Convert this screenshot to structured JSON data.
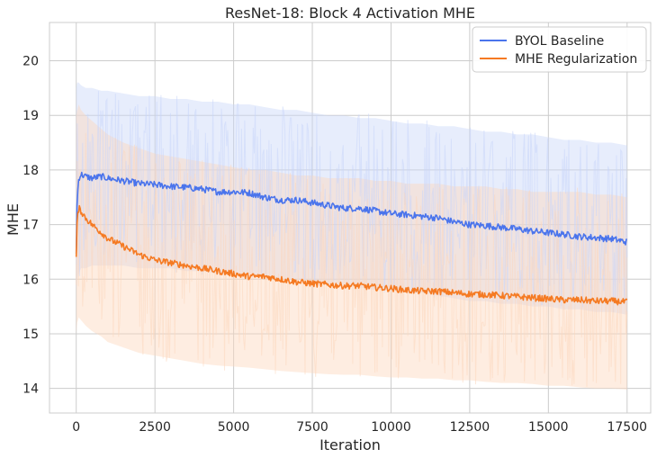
{
  "chart_data": {
    "type": "line",
    "title": "ResNet-18: Block 4 Activation MHE",
    "xlabel": "Iteration",
    "ylabel": "MHE",
    "xlim": [
      -850,
      18250
    ],
    "ylim": [
      13.55,
      20.7
    ],
    "xticks": [
      0,
      2500,
      5000,
      7500,
      10000,
      12500,
      15000,
      17500
    ],
    "xtick_labels": [
      "0",
      "2500",
      "5000",
      "7500",
      "10000",
      "12500",
      "15000",
      "17500"
    ],
    "yticks": [
      14,
      15,
      16,
      17,
      18,
      19,
      20
    ],
    "ytick_labels": [
      "14",
      "15",
      "16",
      "17",
      "18",
      "19",
      "20"
    ],
    "grid": true,
    "legend_position": "top-right",
    "series": [
      {
        "name": "BYOL Baseline",
        "color": "#4a74ec",
        "band_color": "#c9d6f9",
        "x": [
          0,
          30,
          80,
          150,
          300,
          500,
          800,
          1000,
          1500,
          2000,
          2500,
          3000,
          3500,
          4000,
          4500,
          5000,
          5500,
          6000,
          6500,
          7000,
          7500,
          8000,
          8500,
          9000,
          9500,
          10000,
          10500,
          11000,
          11500,
          12000,
          12500,
          13000,
          13500,
          14000,
          14500,
          15000,
          15500,
          16000,
          16500,
          17000,
          17500
        ],
        "values": [
          16.5,
          17.5,
          17.85,
          17.92,
          17.88,
          17.85,
          17.88,
          17.85,
          17.8,
          17.75,
          17.73,
          17.7,
          17.68,
          17.65,
          17.6,
          17.6,
          17.58,
          17.5,
          17.45,
          17.45,
          17.4,
          17.35,
          17.3,
          17.3,
          17.25,
          17.2,
          17.18,
          17.15,
          17.12,
          17.05,
          17.0,
          16.98,
          16.95,
          16.92,
          16.88,
          16.85,
          16.82,
          16.78,
          16.76,
          16.74,
          16.68
        ],
        "band_upper": [
          19.5,
          19.6,
          19.6,
          19.55,
          19.5,
          19.5,
          19.45,
          19.45,
          19.4,
          19.35,
          19.35,
          19.3,
          19.3,
          19.25,
          19.25,
          19.2,
          19.2,
          19.15,
          19.1,
          19.1,
          19.05,
          19.0,
          19.0,
          18.95,
          18.95,
          18.9,
          18.85,
          18.85,
          18.8,
          18.8,
          18.75,
          18.7,
          18.7,
          18.65,
          18.65,
          18.6,
          18.55,
          18.55,
          18.5,
          18.5,
          18.45
        ],
        "band_lower": [
          15.8,
          16.0,
          16.1,
          16.2,
          16.2,
          16.25,
          16.25,
          16.25,
          16.25,
          16.2,
          16.2,
          16.2,
          16.15,
          16.15,
          16.1,
          16.1,
          16.1,
          16.05,
          16.0,
          16.0,
          15.95,
          15.9,
          15.9,
          15.85,
          15.8,
          15.8,
          15.75,
          15.75,
          15.7,
          15.65,
          15.6,
          15.6,
          15.55,
          15.55,
          15.5,
          15.5,
          15.45,
          15.45,
          15.4,
          15.4,
          15.35
        ]
      },
      {
        "name": "MHE Regularization",
        "color": "#f57a22",
        "band_color": "#fcd7bd",
        "x": [
          0,
          30,
          80,
          150,
          300,
          500,
          800,
          1000,
          1500,
          2000,
          2500,
          3000,
          3500,
          4000,
          4500,
          5000,
          5500,
          6000,
          6500,
          7000,
          7500,
          8000,
          8500,
          9000,
          9500,
          10000,
          10500,
          11000,
          11500,
          12000,
          12500,
          13000,
          13500,
          14000,
          14500,
          15000,
          15500,
          16000,
          16500,
          17000,
          17500
        ],
        "values": [
          16.4,
          17.1,
          17.3,
          17.25,
          17.12,
          17.0,
          16.85,
          16.75,
          16.6,
          16.45,
          16.35,
          16.3,
          16.25,
          16.2,
          16.15,
          16.1,
          16.05,
          16.05,
          16.0,
          15.95,
          15.92,
          15.9,
          15.88,
          15.88,
          15.85,
          15.83,
          15.8,
          15.78,
          15.78,
          15.75,
          15.73,
          15.72,
          15.7,
          15.68,
          15.66,
          15.64,
          15.62,
          15.62,
          15.6,
          15.6,
          15.58
        ],
        "band_upper": [
          19.0,
          19.1,
          19.2,
          19.1,
          19.0,
          18.9,
          18.75,
          18.65,
          18.5,
          18.4,
          18.3,
          18.25,
          18.2,
          18.15,
          18.1,
          18.05,
          18.0,
          18.0,
          17.95,
          17.9,
          17.9,
          17.85,
          17.85,
          17.85,
          17.8,
          17.8,
          17.75,
          17.75,
          17.75,
          17.7,
          17.7,
          17.7,
          17.65,
          17.65,
          17.6,
          17.6,
          17.6,
          17.6,
          17.55,
          17.55,
          17.5
        ],
        "band_lower": [
          15.0,
          15.2,
          15.3,
          15.25,
          15.15,
          15.05,
          14.95,
          14.85,
          14.75,
          14.65,
          14.6,
          14.55,
          14.5,
          14.45,
          14.42,
          14.4,
          14.38,
          14.35,
          14.32,
          14.3,
          14.28,
          14.26,
          14.25,
          14.25,
          14.22,
          14.2,
          14.2,
          14.18,
          14.18,
          14.15,
          14.15,
          14.12,
          14.1,
          14.1,
          14.08,
          14.05,
          14.05,
          14.02,
          14.0,
          14.0,
          13.98
        ]
      }
    ]
  }
}
